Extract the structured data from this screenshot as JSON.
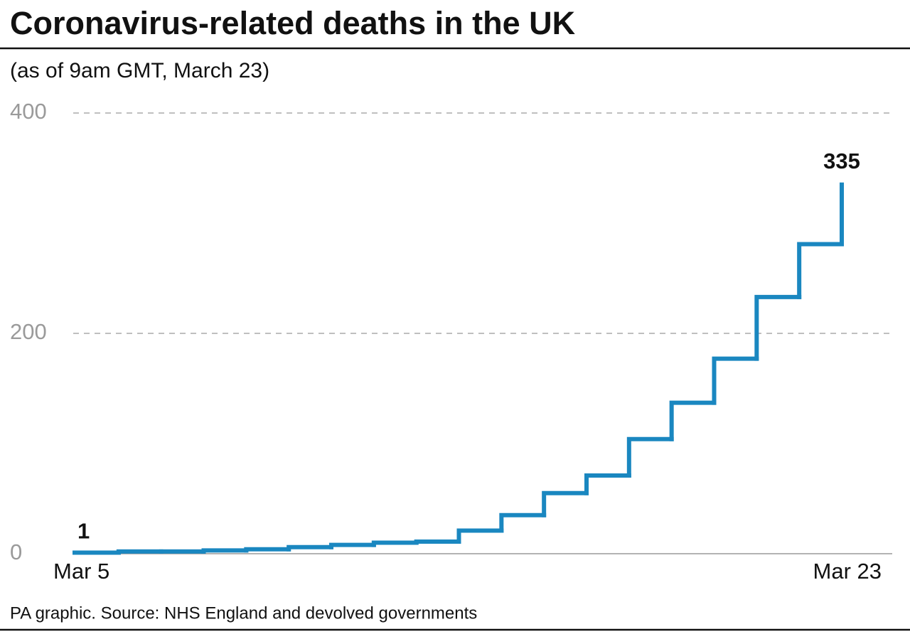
{
  "chart_data": {
    "type": "step",
    "title": "Coronavirus-related deaths in the UK",
    "subtitle": "(as of 9am GMT, March 23)",
    "source": "PA graphic. Source: NHS England and devolved governments",
    "categories": [
      "Mar 5",
      null,
      null,
      null,
      null,
      null,
      null,
      null,
      null,
      null,
      null,
      null,
      null,
      null,
      null,
      null,
      null,
      null,
      "Mar 23"
    ],
    "values": [
      1,
      2,
      2,
      3,
      4,
      6,
      8,
      10,
      11,
      21,
      35,
      55,
      71,
      104,
      137,
      177,
      233,
      281,
      335
    ],
    "color": "#1a87c0",
    "ylim": [
      0,
      400
    ],
    "yticks": [
      0,
      200,
      400
    ],
    "grid": true
  }
}
